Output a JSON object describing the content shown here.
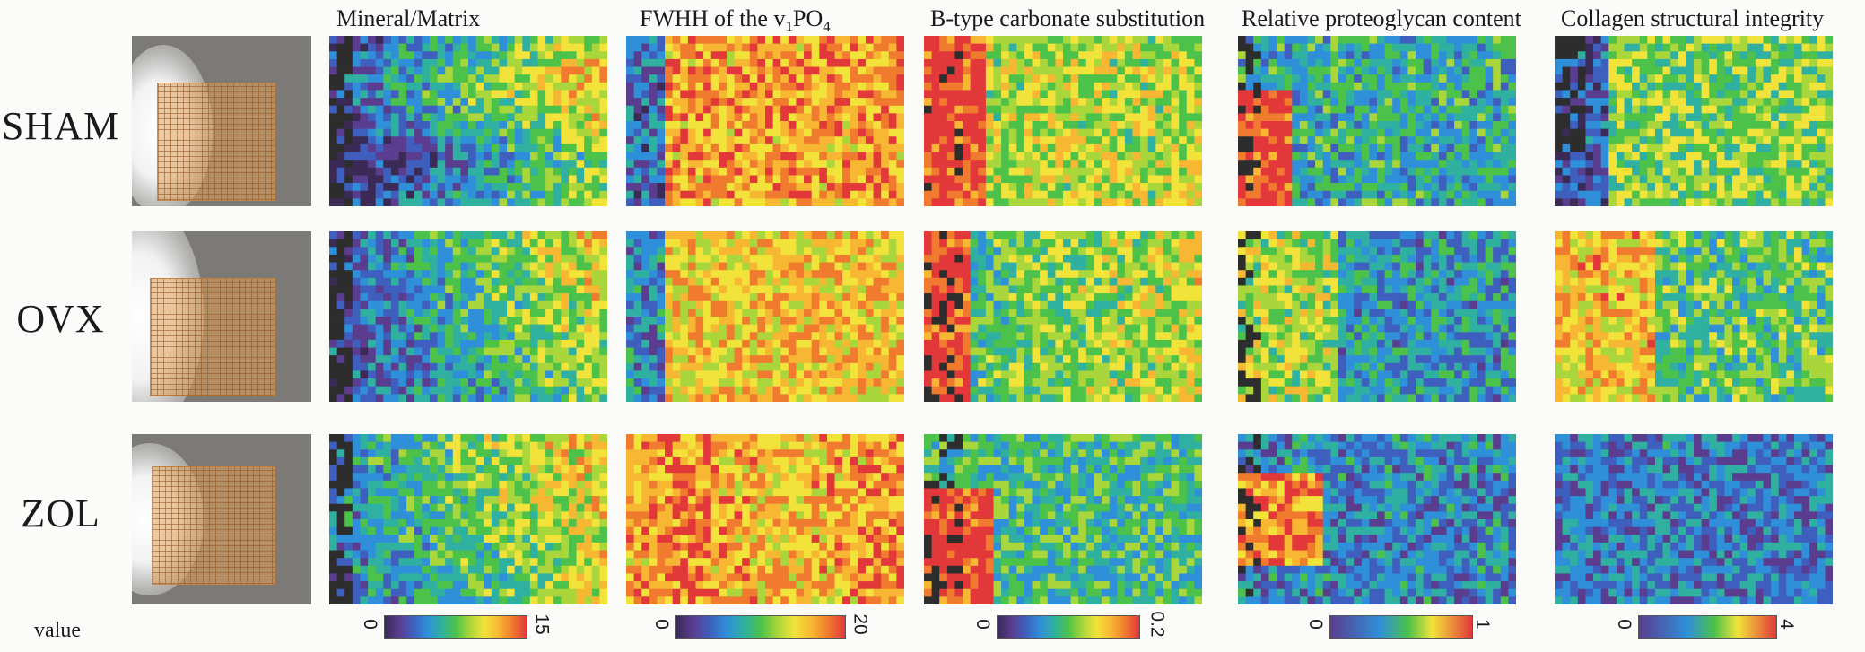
{
  "rows": [
    "SHAM",
    "OVX",
    "ZOL"
  ],
  "columns": [
    {
      "title": "Mineral/Matrix",
      "cbar_min": "0",
      "cbar_max": "15"
    },
    {
      "title_main": "FWHH of the v",
      "title_sub1": "1",
      "title_mid": "PO",
      "title_sub2": "4",
      "cbar_min": "0",
      "cbar_max": "20"
    },
    {
      "title": "B-type carbonate substitution",
      "cbar_min": "0",
      "cbar_max": "0.2"
    },
    {
      "title": "Relative proteoglycan content",
      "cbar_min": "0",
      "cbar_max": "1"
    },
    {
      "title": "Collagen structural integrity",
      "cbar_min": "0",
      "cbar_max": "4"
    }
  ],
  "value_label": "value",
  "colormap": [
    "#3a2a55",
    "#5a3d8f",
    "#3f5fbf",
    "#2f8fd9",
    "#2fb0a0",
    "#4cc24a",
    "#a9d63a",
    "#f2e33a",
    "#f7b733",
    "#f07a2e",
    "#e2383a"
  ],
  "dark_color": "#2d2d2d"
}
